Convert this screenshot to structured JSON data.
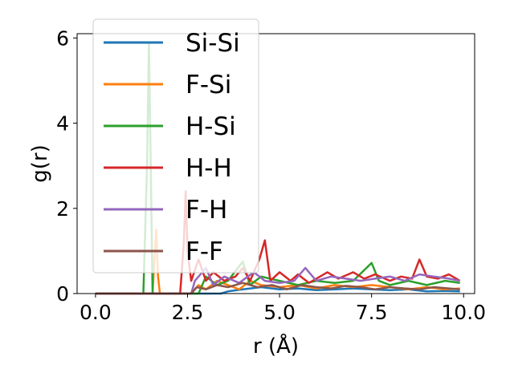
{
  "chart_data": {
    "type": "line",
    "xlabel": "r (Å)",
    "ylabel": "g(r)",
    "xlim": [
      -0.5,
      10.3
    ],
    "ylim": [
      0,
      6.1
    ],
    "xticks": [
      0.0,
      2.5,
      5.0,
      7.5,
      10.0
    ],
    "xtick_labels": [
      "0.0",
      "2.5",
      "5.0",
      "7.5",
      "10.0"
    ],
    "yticks": [
      0,
      2,
      4,
      6
    ],
    "ytick_labels": [
      "0",
      "2",
      "4",
      "6"
    ],
    "legend_placement": "upper-left",
    "grid": false,
    "series": [
      {
        "name": "Si-Si",
        "color": "#1f77b4",
        "points": [
          [
            0,
            0
          ],
          [
            3.4,
            0
          ],
          [
            3.6,
            0.05
          ],
          [
            4.0,
            0.1
          ],
          [
            4.5,
            0.15
          ],
          [
            5.0,
            0.1
          ],
          [
            5.5,
            0.12
          ],
          [
            6.0,
            0.08
          ],
          [
            6.5,
            0.1
          ],
          [
            7.0,
            0.12
          ],
          [
            7.5,
            0.1
          ],
          [
            8.0,
            0.08
          ],
          [
            8.5,
            0.1
          ],
          [
            9.0,
            0.05
          ],
          [
            9.5,
            0.06
          ],
          [
            9.9,
            0.05
          ]
        ]
      },
      {
        "name": "F-Si",
        "color": "#ff7f0e",
        "points": [
          [
            0,
            0
          ],
          [
            1.55,
            0
          ],
          [
            1.6,
            0.8
          ],
          [
            1.65,
            1.5
          ],
          [
            1.7,
            0.4
          ],
          [
            1.75,
            0
          ],
          [
            2.6,
            0
          ],
          [
            2.8,
            0.2
          ],
          [
            3.0,
            0.1
          ],
          [
            3.3,
            0.3
          ],
          [
            3.6,
            0.2
          ],
          [
            3.9,
            0.1
          ],
          [
            4.2,
            0.3
          ],
          [
            4.5,
            0.2
          ],
          [
            5.0,
            0.15
          ],
          [
            5.5,
            0.2
          ],
          [
            6.0,
            0.12
          ],
          [
            6.5,
            0.2
          ],
          [
            7.0,
            0.15
          ],
          [
            7.5,
            0.2
          ],
          [
            8.0,
            0.15
          ],
          [
            8.5,
            0.1
          ],
          [
            9.0,
            0.15
          ],
          [
            9.5,
            0.1
          ],
          [
            9.9,
            0.12
          ]
        ]
      },
      {
        "name": "H-Si",
        "color": "#2ca02c",
        "points": [
          [
            0,
            0
          ],
          [
            1.3,
            0
          ],
          [
            1.4,
            3.0
          ],
          [
            1.45,
            5.9
          ],
          [
            1.5,
            3.0
          ],
          [
            1.55,
            0
          ],
          [
            2.8,
            0
          ],
          [
            3.0,
            0.4
          ],
          [
            3.3,
            0.2
          ],
          [
            3.6,
            0.3
          ],
          [
            4.0,
            0.75
          ],
          [
            4.2,
            0.2
          ],
          [
            4.5,
            0.4
          ],
          [
            5.0,
            0.3
          ],
          [
            5.5,
            0.2
          ],
          [
            6.0,
            0.3
          ],
          [
            6.5,
            0.25
          ],
          [
            7.0,
            0.3
          ],
          [
            7.5,
            0.72
          ],
          [
            7.7,
            0.3
          ],
          [
            8.0,
            0.2
          ],
          [
            8.5,
            0.3
          ],
          [
            9.0,
            0.2
          ],
          [
            9.5,
            0.3
          ],
          [
            9.9,
            0.25
          ]
        ]
      },
      {
        "name": "H-H",
        "color": "#d62728",
        "points": [
          [
            0,
            0
          ],
          [
            2.3,
            0
          ],
          [
            2.4,
            1.2
          ],
          [
            2.45,
            2.4
          ],
          [
            2.5,
            1.0
          ],
          [
            2.6,
            0.3
          ],
          [
            2.8,
            0.8
          ],
          [
            3.0,
            0.3
          ],
          [
            3.2,
            0.5
          ],
          [
            3.5,
            0.3
          ],
          [
            3.8,
            0.4
          ],
          [
            4.0,
            0.6
          ],
          [
            4.2,
            0.3
          ],
          [
            4.45,
            0.8
          ],
          [
            4.6,
            1.25
          ],
          [
            4.75,
            0.3
          ],
          [
            5.0,
            0.5
          ],
          [
            5.3,
            0.3
          ],
          [
            5.5,
            0.45
          ],
          [
            5.8,
            0.25
          ],
          [
            6.0,
            0.35
          ],
          [
            6.3,
            0.5
          ],
          [
            6.6,
            0.35
          ],
          [
            7.0,
            0.5
          ],
          [
            7.3,
            0.35
          ],
          [
            7.6,
            0.45
          ],
          [
            8.0,
            0.3
          ],
          [
            8.3,
            0.4
          ],
          [
            8.6,
            0.35
          ],
          [
            8.8,
            0.8
          ],
          [
            9.0,
            0.4
          ],
          [
            9.3,
            0.35
          ],
          [
            9.6,
            0.45
          ],
          [
            9.9,
            0.3
          ]
        ]
      },
      {
        "name": "F-H",
        "color": "#9467bd",
        "points": [
          [
            0,
            0
          ],
          [
            2.6,
            0
          ],
          [
            2.7,
            0.3
          ],
          [
            3.0,
            0.6
          ],
          [
            3.2,
            0.2
          ],
          [
            3.5,
            0.4
          ],
          [
            3.9,
            0.25
          ],
          [
            4.3,
            0.5
          ],
          [
            4.6,
            0.3
          ],
          [
            5.0,
            0.25
          ],
          [
            5.4,
            0.3
          ],
          [
            5.7,
            0.6
          ],
          [
            6.0,
            0.3
          ],
          [
            6.4,
            0.4
          ],
          [
            6.8,
            0.35
          ],
          [
            7.2,
            0.3
          ],
          [
            7.6,
            0.35
          ],
          [
            8.0,
            0.4
          ],
          [
            8.4,
            0.3
          ],
          [
            8.8,
            0.45
          ],
          [
            9.2,
            0.4
          ],
          [
            9.6,
            0.35
          ],
          [
            9.9,
            0.3
          ]
        ]
      },
      {
        "name": "F-F",
        "color": "#8c564b",
        "points": [
          [
            0,
            0
          ],
          [
            2.6,
            0
          ],
          [
            2.75,
            0.15
          ],
          [
            3.0,
            0.1
          ],
          [
            3.3,
            0.2
          ],
          [
            3.6,
            0.15
          ],
          [
            4.0,
            0.25
          ],
          [
            4.4,
            0.15
          ],
          [
            4.8,
            0.2
          ],
          [
            5.2,
            0.1
          ],
          [
            5.6,
            0.2
          ],
          [
            6.0,
            0.15
          ],
          [
            6.4,
            0.12
          ],
          [
            6.8,
            0.18
          ],
          [
            7.2,
            0.15
          ],
          [
            7.6,
            0.1
          ],
          [
            8.0,
            0.15
          ],
          [
            8.4,
            0.12
          ],
          [
            8.8,
            0.1
          ],
          [
            9.2,
            0.15
          ],
          [
            9.6,
            0.12
          ],
          [
            9.9,
            0.1
          ]
        ]
      }
    ]
  }
}
